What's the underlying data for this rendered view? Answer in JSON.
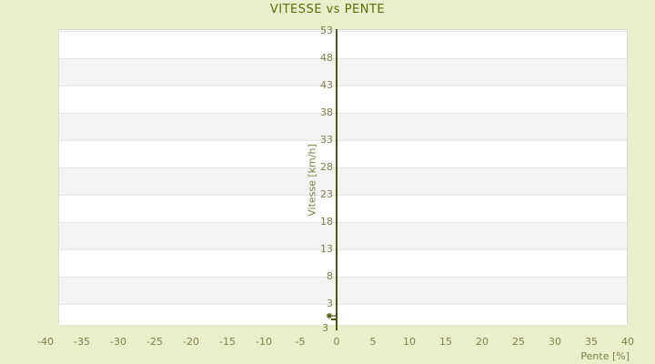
{
  "title": "VITESSE vs PENTE",
  "colors": {
    "background": "#e9eecb",
    "title_text": "#5b6b07",
    "axis_text": "#7c8048",
    "axis_line": "#4c5405",
    "band_light": "#ffffff",
    "band_dark": "#f3f3f3",
    "gridline": "#e5e5e5",
    "plot_border": "#d9d9d9",
    "marker": "#4c5405"
  },
  "chart_data": {
    "type": "scatter",
    "title": "VITESSE vs PENTE",
    "xlabel": "Pente [%]",
    "ylabel": "Vitesse [km/h]",
    "x_ticks": [
      -40,
      -35,
      -30,
      -25,
      -20,
      -15,
      -10,
      -5,
      0,
      5,
      10,
      15,
      20,
      25,
      30,
      35,
      40
    ],
    "y_ticks": [
      53,
      48,
      43,
      38,
      33,
      28,
      23,
      18,
      13,
      8,
      3
    ],
    "y_axis_extra_label": "3",
    "xlim": [
      -40,
      40
    ],
    "ylim": [
      -2,
      53
    ],
    "grid": "horizontal-alternating-bands",
    "legend": "none",
    "series": [
      {
        "name": "VITESSE",
        "marker": "asterisk",
        "points": [
          {
            "x": -1,
            "y": 0.75
          },
          {
            "x": 0,
            "y": 0.75
          }
        ]
      }
    ]
  }
}
